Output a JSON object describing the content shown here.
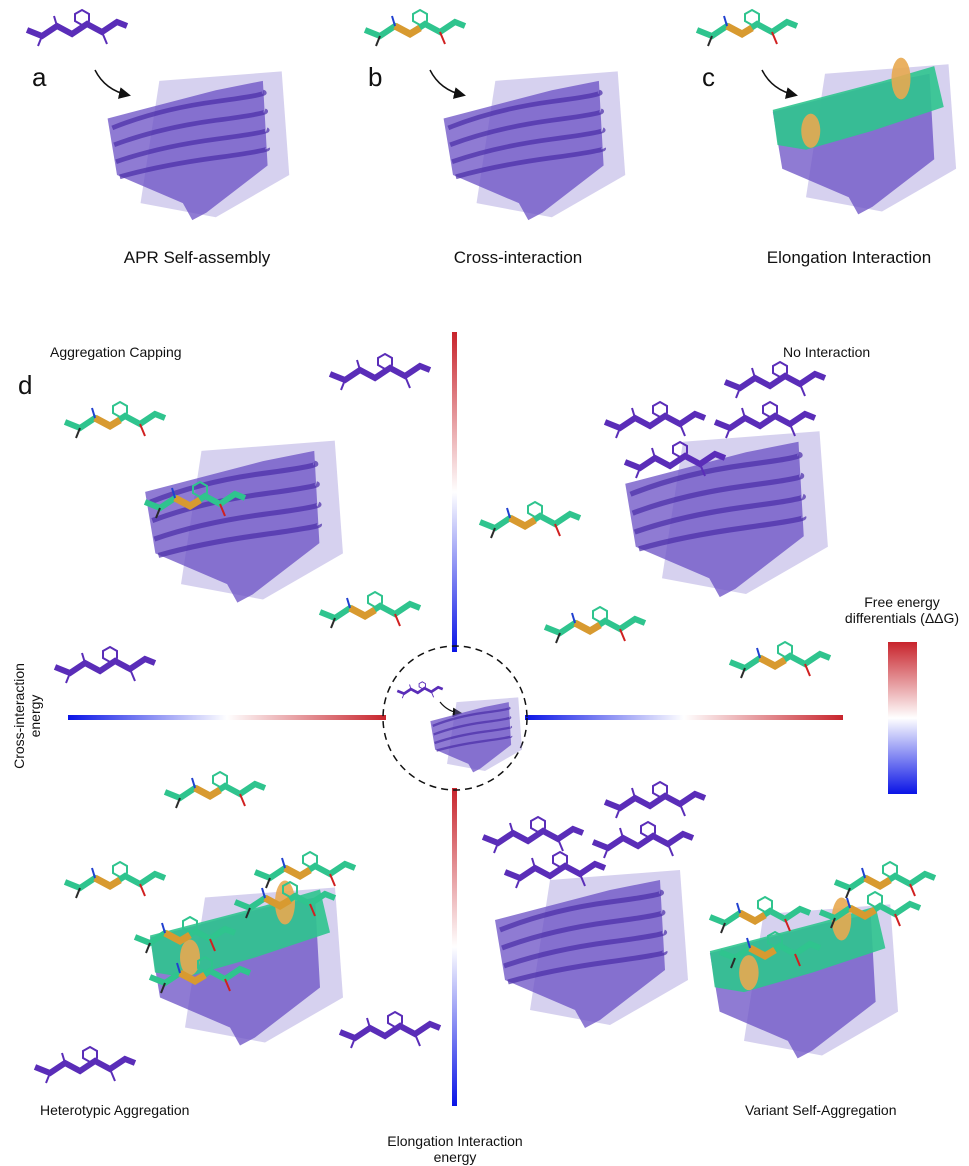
{
  "panels": [
    {
      "letter": "a",
      "caption": "APR Self-assembly"
    },
    {
      "letter": "b",
      "caption": "Cross-interaction"
    },
    {
      "letter": "c",
      "caption": "Elongation Interaction"
    }
  ],
  "quadrant_panel": {
    "letter": "d",
    "quadrants": [
      "Aggregation Capping",
      "No Interaction",
      "Heterotypic Aggregation",
      "Variant Self-Aggregation"
    ],
    "y_axis_label": "Cross-interaction energy",
    "x_axis_label": "Elongation Interaction energy",
    "colorbar_label": "Free energy differentials (ΔΔG)"
  }
}
